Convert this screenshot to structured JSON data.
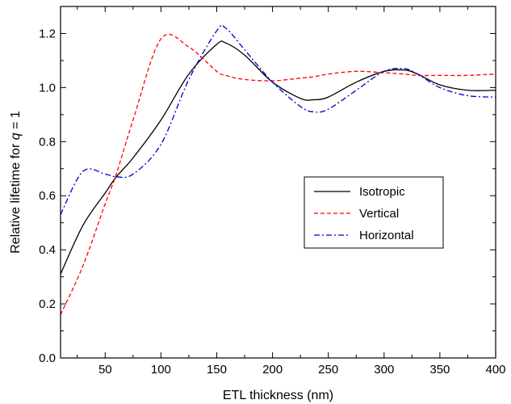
{
  "chart_data": {
    "type": "line",
    "xlabel": "ETL thickness (nm)",
    "ylabel": {
      "prefix": "Relative lifetime for ",
      "italic": "q",
      "suffix": " = 1"
    },
    "xlim": [
      10,
      400
    ],
    "ylim": [
      0,
      1.3
    ],
    "xticks": [
      50,
      100,
      150,
      200,
      250,
      300,
      350,
      400
    ],
    "yticks": [
      0.0,
      0.2,
      0.4,
      0.6,
      0.8,
      1.0,
      1.2
    ],
    "ytick_labels": [
      "0.0",
      "0.2",
      "0.4",
      "0.6",
      "0.8",
      "1.0",
      "1.2"
    ],
    "grid": false,
    "legend_position": "center-right",
    "x": [
      10,
      30,
      50,
      60,
      75,
      100,
      125,
      150,
      158,
      175,
      200,
      225,
      237,
      250,
      275,
      300,
      318,
      330,
      350,
      375,
      400
    ],
    "series": [
      {
        "name": "Isotropic",
        "color": "#000000",
        "dash": "solid",
        "values": [
          0.31,
          0.49,
          0.61,
          0.67,
          0.74,
          0.88,
          1.05,
          1.16,
          1.165,
          1.12,
          1.02,
          0.96,
          0.955,
          0.965,
          1.02,
          1.06,
          1.065,
          1.05,
          1.01,
          0.99,
          0.99
        ]
      },
      {
        "name": "Vertical",
        "color": "#ff0000",
        "dash": "dashed",
        "values": [
          0.16,
          0.34,
          0.57,
          0.68,
          0.88,
          1.18,
          1.15,
          1.06,
          1.045,
          1.03,
          1.025,
          1.035,
          1.04,
          1.05,
          1.06,
          1.055,
          1.05,
          1.045,
          1.045,
          1.045,
          1.05
        ]
      },
      {
        "name": "Horizontal",
        "color": "#0000cc",
        "dash": "dashdot",
        "values": [
          0.53,
          0.69,
          0.68,
          0.67,
          0.68,
          0.79,
          1.03,
          1.21,
          1.22,
          1.14,
          1.02,
          0.93,
          0.91,
          0.92,
          0.99,
          1.06,
          1.07,
          1.05,
          1.0,
          0.97,
          0.965
        ]
      }
    ]
  }
}
